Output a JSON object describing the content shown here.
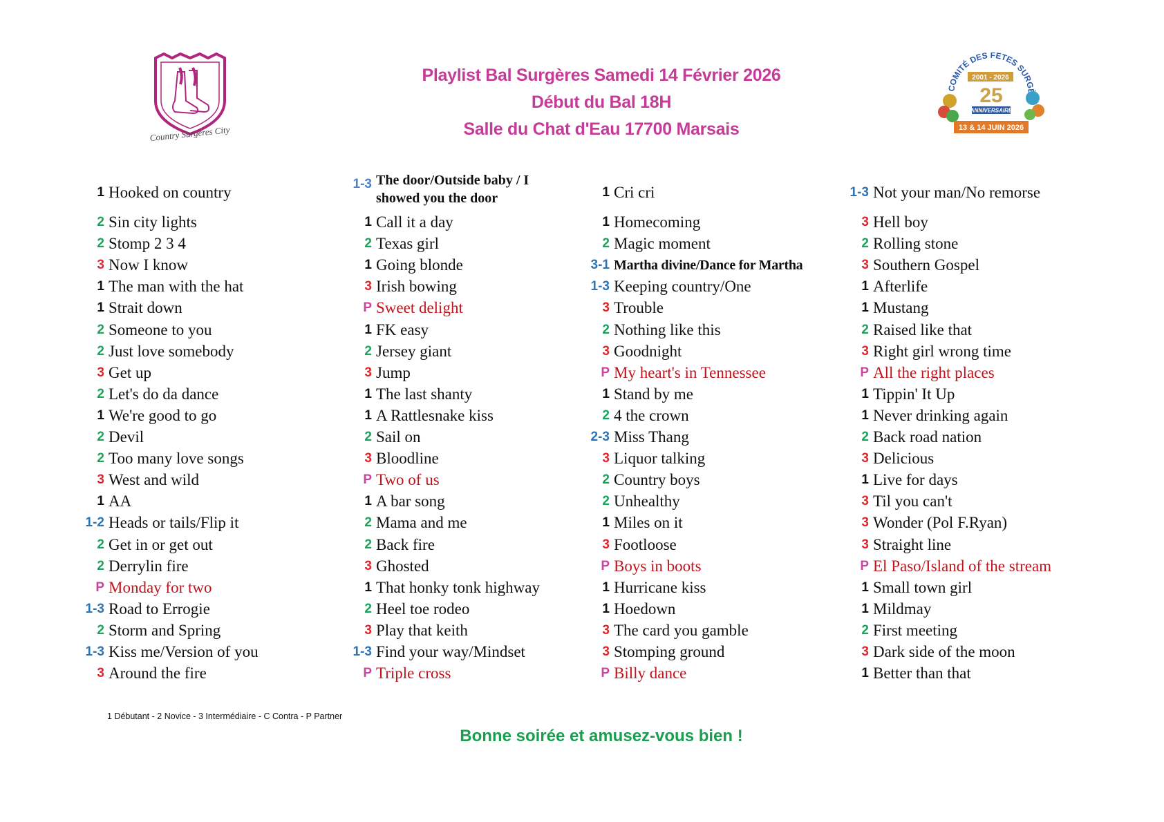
{
  "header": {
    "title_line1": "Playlist Bal Surgères Samedi 14 Février 2026",
    "title_line2": "Début du Bal 18H",
    "title_line3": "Salle du Chat d'Eau 17700 Marsais"
  },
  "logos": {
    "left": {
      "text": "Country Surgères City"
    },
    "right": {
      "top_text": "Comité des Fêtes Surgères",
      "years": "2001 - 2026",
      "number": "25",
      "sub": "Anniversaire",
      "date": "13 & 14 JUIN 2026"
    }
  },
  "level_colors": {
    "1": "#111111",
    "2": "#1aa35a",
    "3": "#e0262b",
    "P": "#c8449e",
    "range": "#2d74b5",
    "range_light": "#4f81c7",
    "partner_title": "#c0141c"
  },
  "columns": [
    {
      "items": [
        {
          "level": "1",
          "title": "Hooked on country"
        },
        {
          "level": "2",
          "title": "Sin city lights"
        },
        {
          "level": "2",
          "title": "Stomp 2 3 4"
        },
        {
          "level": "3",
          "title": "Now I know"
        },
        {
          "level": "1",
          "title": "The man with the hat"
        },
        {
          "level": "1",
          "title": "Strait down"
        },
        {
          "level": "2",
          "title": "Someone to you"
        },
        {
          "level": "2",
          "title": "Just love somebody"
        },
        {
          "level": "3",
          "title": "Get up"
        },
        {
          "level": "2",
          "title": "Let's do da dance"
        },
        {
          "level": "1",
          "title": "We're good to go"
        },
        {
          "level": "2",
          "title": "Devil"
        },
        {
          "level": "2",
          "title": "Too many love songs"
        },
        {
          "level": "3",
          "title": "West and wild"
        },
        {
          "level": "1",
          "title": "AA"
        },
        {
          "level": "1-2",
          "title": "Heads or tails/Flip it"
        },
        {
          "level": "2",
          "title": "Get in or get out"
        },
        {
          "level": "2",
          "title": "Derrylin fire"
        },
        {
          "level": "P",
          "title": "Monday for two"
        },
        {
          "level": "1-3",
          "title": "Road to Errogie"
        },
        {
          "level": "2",
          "title": "Storm and Spring"
        },
        {
          "level": "1-3",
          "title": "Kiss me/Version of you"
        },
        {
          "level": "3",
          "title": "Around the fire"
        }
      ]
    },
    {
      "items": [
        {
          "level": "1-3",
          "title": "The door/Outside baby / I showed you the door"
        },
        {
          "level": "1",
          "title": "Call it a day"
        },
        {
          "level": "2",
          "title": "Texas girl"
        },
        {
          "level": "1",
          "title": "Going blonde"
        },
        {
          "level": "3",
          "title": "Irish bowing"
        },
        {
          "level": "P",
          "title": "Sweet delight"
        },
        {
          "level": "1",
          "title": "FK easy"
        },
        {
          "level": "2",
          "title": "Jersey giant"
        },
        {
          "level": "3",
          "title": "Jump"
        },
        {
          "level": "1",
          "title": "The last shanty"
        },
        {
          "level": "1",
          "title": "A Rattlesnake kiss"
        },
        {
          "level": "2",
          "title": "Sail on"
        },
        {
          "level": "3",
          "title": "Bloodline"
        },
        {
          "level": "P",
          "title": "Two of us"
        },
        {
          "level": "1",
          "title": "A bar song"
        },
        {
          "level": "2",
          "title": "Mama and me"
        },
        {
          "level": "2",
          "title": "Back fire"
        },
        {
          "level": "3",
          "title": "Ghosted"
        },
        {
          "level": "1",
          "title": "That honky tonk highway"
        },
        {
          "level": "2",
          "title": "Heel toe rodeo"
        },
        {
          "level": "3",
          "title": "Play that keith"
        },
        {
          "level": "1-3",
          "title": "Find your way/Mindset"
        },
        {
          "level": "P",
          "title": "Triple cross"
        }
      ]
    },
    {
      "items": [
        {
          "level": "1",
          "title": "Cri cri"
        },
        {
          "level": "1",
          "title": "Homecoming"
        },
        {
          "level": "2",
          "title": "Magic moment"
        },
        {
          "level": "3-1",
          "title": "Martha divine/Dance for Martha"
        },
        {
          "level": "1-3",
          "title": "Keeping country/One"
        },
        {
          "level": "3",
          "title": "Trouble"
        },
        {
          "level": "2",
          "title": "Nothing like this"
        },
        {
          "level": "3",
          "title": "Goodnight"
        },
        {
          "level": "P",
          "title": "My heart's in Tennessee"
        },
        {
          "level": "1",
          "title": "Stand by me"
        },
        {
          "level": "2",
          "title": "4 the crown"
        },
        {
          "level": "2-3",
          "title": "Miss Thang"
        },
        {
          "level": "3",
          "title": "Liquor talking"
        },
        {
          "level": "2",
          "title": "Country boys"
        },
        {
          "level": "2",
          "title": "Unhealthy"
        },
        {
          "level": "1",
          "title": "Miles on it"
        },
        {
          "level": "3",
          "title": "Footloose"
        },
        {
          "level": "P",
          "title": "Boys in boots"
        },
        {
          "level": "1",
          "title": "Hurricane kiss"
        },
        {
          "level": "1",
          "title": "Hoedown"
        },
        {
          "level": "3",
          "title": "The card you gamble"
        },
        {
          "level": "3",
          "title": "Stomping ground"
        },
        {
          "level": "P",
          "title": "Billy dance"
        }
      ]
    },
    {
      "items": [
        {
          "level": "1-3",
          "title": "Not your man/No remorse"
        },
        {
          "level": "3",
          "title": "Hell boy"
        },
        {
          "level": "2",
          "title": "Rolling stone"
        },
        {
          "level": "3",
          "title": "Southern Gospel"
        },
        {
          "level": "1",
          "title": "Afterlife"
        },
        {
          "level": "1",
          "title": "Mustang"
        },
        {
          "level": "2",
          "title": "Raised like that"
        },
        {
          "level": "3",
          "title": "Right girl wrong time"
        },
        {
          "level": "P",
          "title": "All the right places"
        },
        {
          "level": "1",
          "title": "Tippin' It Up"
        },
        {
          "level": "1",
          "title": "Never drinking again"
        },
        {
          "level": "2",
          "title": "Back road nation"
        },
        {
          "level": "3",
          "title": "Delicious"
        },
        {
          "level": "1",
          "title": "Live for days"
        },
        {
          "level": "3",
          "title": "Til you can't"
        },
        {
          "level": "3",
          "title": "Wonder (Pol F.Ryan)"
        },
        {
          "level": "3",
          "title": "Straight line"
        },
        {
          "level": "P",
          "title": "El Paso/Island of the stream"
        },
        {
          "level": "1",
          "title": "Small town girl"
        },
        {
          "level": "1",
          "title": "Mildmay"
        },
        {
          "level": "2",
          "title": "First meeting"
        },
        {
          "level": "3",
          "title": "Dark side of the moon"
        },
        {
          "level": "1",
          "title": "Better than that"
        }
      ]
    }
  ],
  "footer": {
    "legend": "1 Débutant - 2 Novice - 3 Intermédiaire - C Contra - P Partner",
    "closing": "Bonne soirée et amusez-vous bien !"
  }
}
